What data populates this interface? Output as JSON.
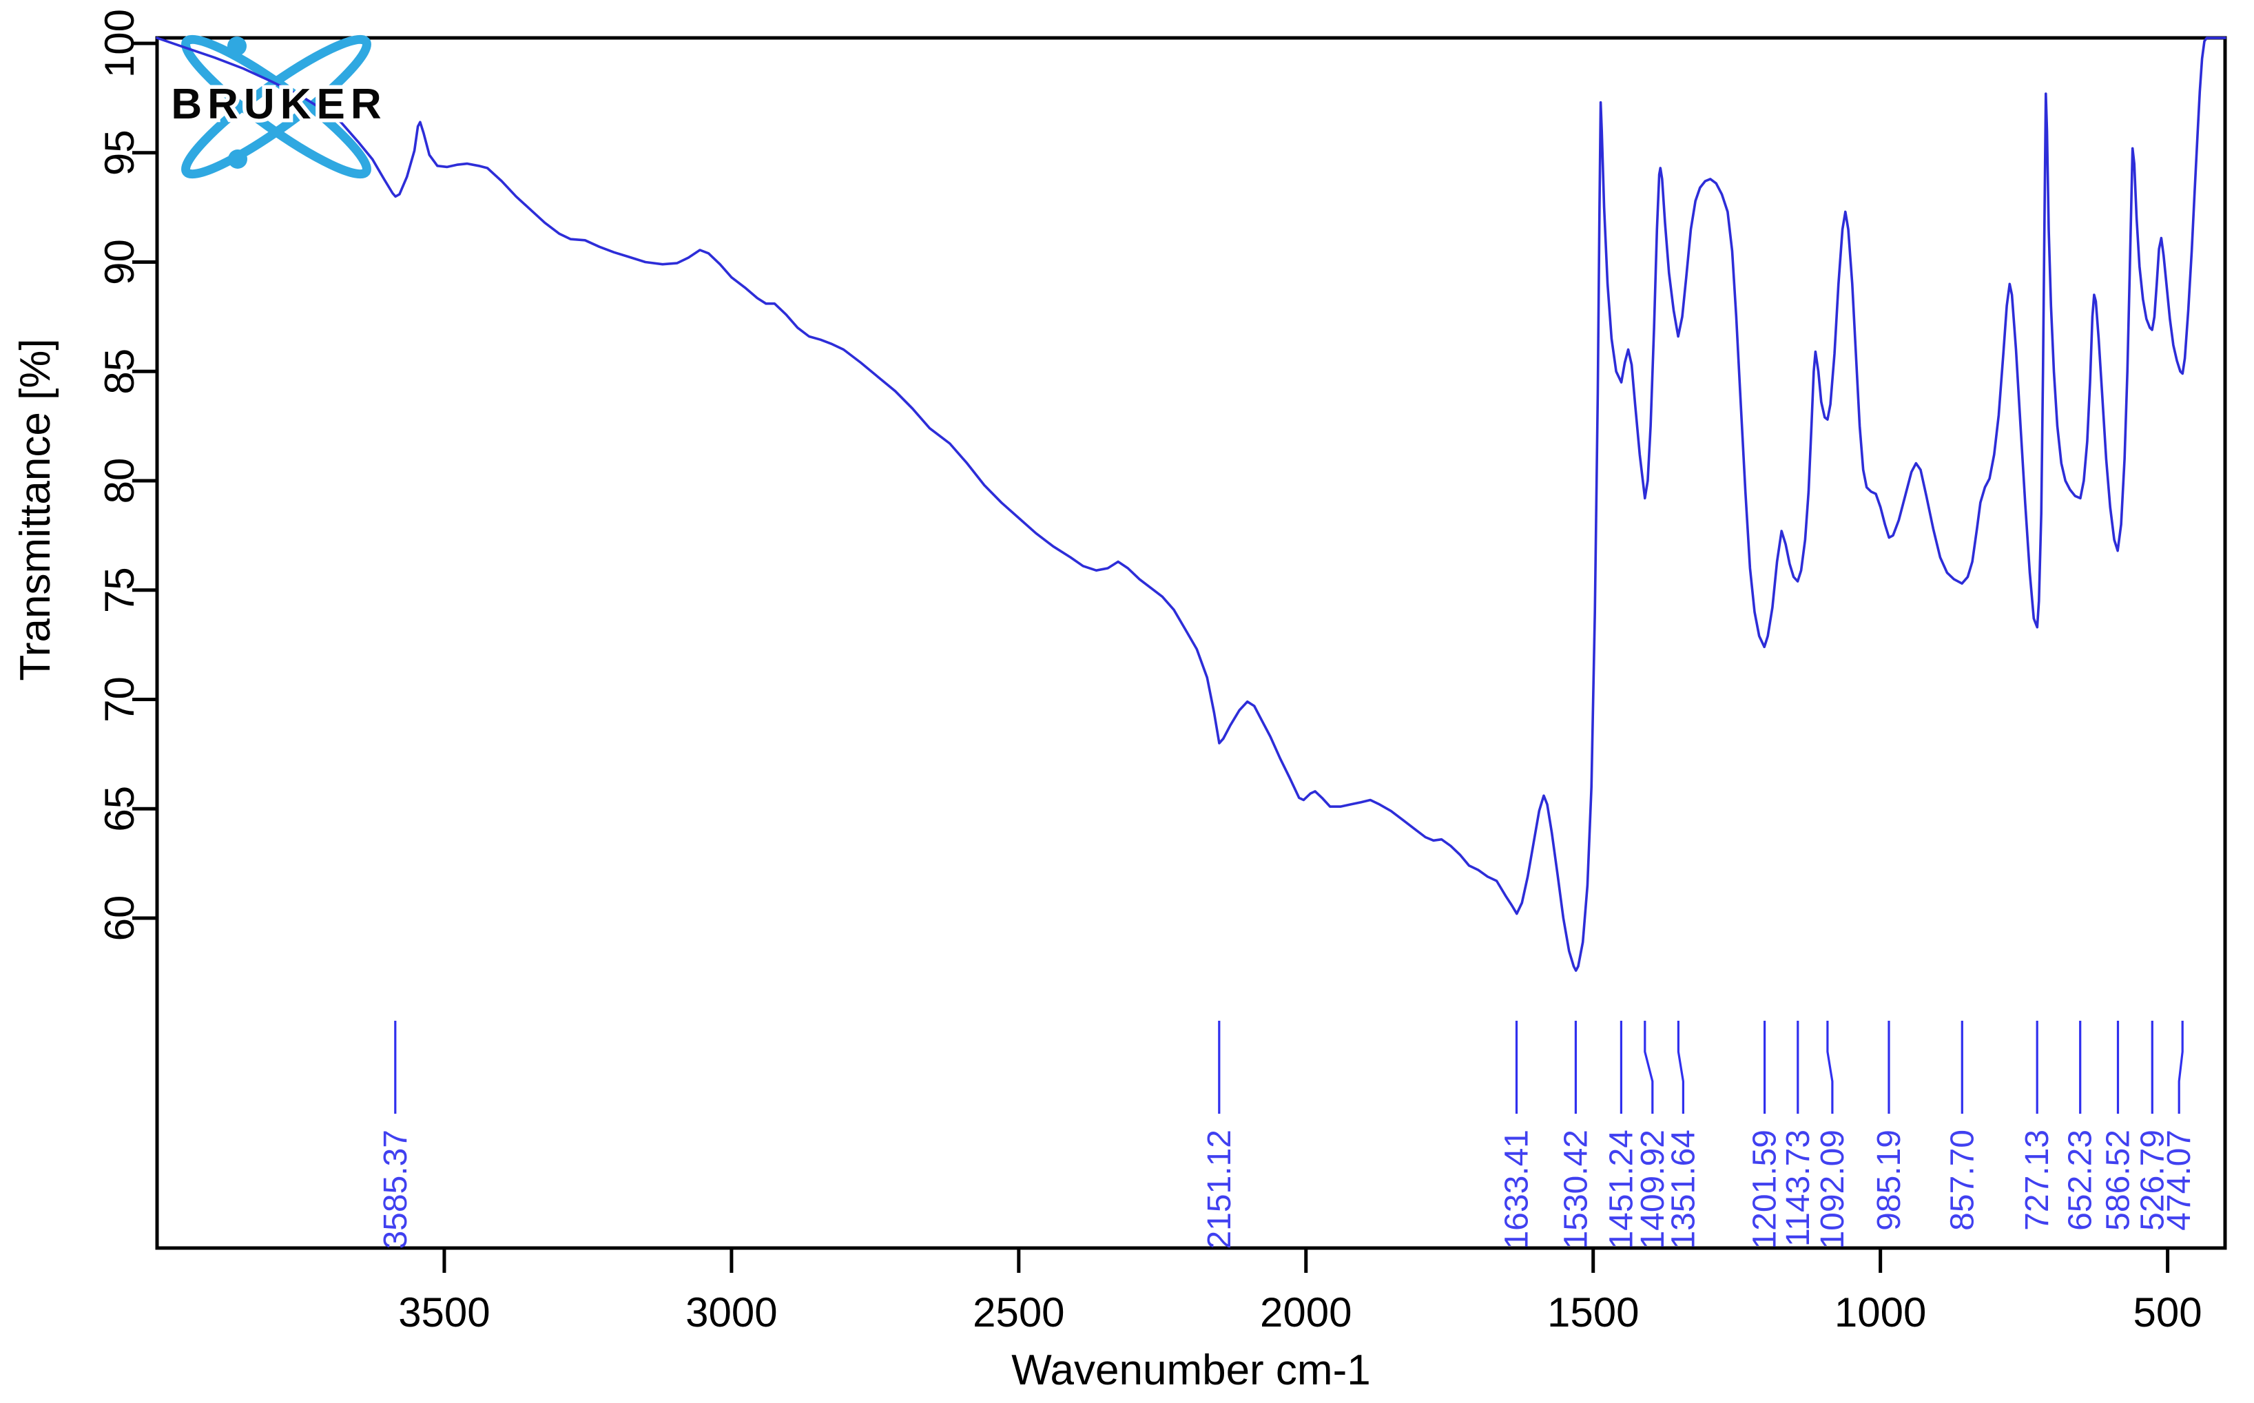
{
  "branding": {
    "logo_text": "BRUKER",
    "logo_color": "#2FA8E1"
  },
  "chart_data": {
    "type": "line",
    "title": "",
    "xlabel": "Wavenumber cm-1",
    "ylabel": "Transmittance [%]",
    "x_axis": {
      "unit": "cm-1",
      "min": 400,
      "max": 4000,
      "reversed": true,
      "tick_labels": [
        "3500",
        "3000",
        "2500",
        "2000",
        "1500",
        "1000",
        "500"
      ]
    },
    "y_axis": {
      "unit": "%",
      "labeled_min": 60,
      "labeled_max": 100,
      "tick_labels": [
        "100",
        "95",
        "90",
        "85",
        "80",
        "75",
        "70",
        "65",
        "60"
      ]
    },
    "grid": false,
    "legend": false,
    "colors": {
      "curve": "#2d2dd8",
      "peak_marker": "#3030ee",
      "peak_text": "#4040f0",
      "axis": "#000000"
    },
    "peak_labels": [
      "3585.37",
      "2151.12",
      "1633.41",
      "1530.42",
      "1451.24",
      "1409.92",
      "1351.64",
      "1201.59",
      "1143.73",
      "1092.09",
      "985.19",
      "857.70",
      "727.13",
      "652.23",
      "586.52",
      "526.79",
      "474.07"
    ],
    "series": [
      {
        "name": "FTIR transmittance spectrum",
        "points": [
          [
            4000,
            100.25
          ],
          [
            3950,
            99.8
          ],
          [
            3900,
            99.35
          ],
          [
            3850,
            98.85
          ],
          [
            3800,
            98.25
          ],
          [
            3750,
            97.6
          ],
          [
            3710,
            96.95
          ],
          [
            3680,
            96.4
          ],
          [
            3650,
            95.5
          ],
          [
            3625,
            94.7
          ],
          [
            3605,
            93.8
          ],
          [
            3590,
            93.15
          ],
          [
            3585,
            93.0
          ],
          [
            3578,
            93.1
          ],
          [
            3565,
            93.9
          ],
          [
            3552,
            95.1
          ],
          [
            3546,
            96.2
          ],
          [
            3542,
            96.4
          ],
          [
            3536,
            95.9
          ],
          [
            3526,
            94.9
          ],
          [
            3512,
            94.4
          ],
          [
            3495,
            94.35
          ],
          [
            3478,
            94.45
          ],
          [
            3460,
            94.5
          ],
          [
            3440,
            94.4
          ],
          [
            3425,
            94.3
          ],
          [
            3400,
            93.7
          ],
          [
            3375,
            93.0
          ],
          [
            3350,
            92.4
          ],
          [
            3325,
            91.8
          ],
          [
            3300,
            91.3
          ],
          [
            3280,
            91.05
          ],
          [
            3255,
            91.0
          ],
          [
            3230,
            90.7
          ],
          [
            3205,
            90.45
          ],
          [
            3180,
            90.25
          ],
          [
            3150,
            90.0
          ],
          [
            3120,
            89.9
          ],
          [
            3095,
            89.95
          ],
          [
            3075,
            90.2
          ],
          [
            3055,
            90.55
          ],
          [
            3040,
            90.4
          ],
          [
            3020,
            89.9
          ],
          [
            3000,
            89.3
          ],
          [
            2975,
            88.8
          ],
          [
            2955,
            88.35
          ],
          [
            2940,
            88.1
          ],
          [
            2925,
            88.1
          ],
          [
            2905,
            87.6
          ],
          [
            2885,
            87.0
          ],
          [
            2865,
            86.6
          ],
          [
            2845,
            86.45
          ],
          [
            2825,
            86.25
          ],
          [
            2805,
            86.0
          ],
          [
            2775,
            85.4
          ],
          [
            2745,
            84.75
          ],
          [
            2715,
            84.1
          ],
          [
            2685,
            83.3
          ],
          [
            2655,
            82.4
          ],
          [
            2620,
            81.7
          ],
          [
            2590,
            80.8
          ],
          [
            2560,
            79.8
          ],
          [
            2530,
            79.0
          ],
          [
            2500,
            78.3
          ],
          [
            2470,
            77.6
          ],
          [
            2440,
            77.0
          ],
          [
            2410,
            76.5
          ],
          [
            2388,
            76.1
          ],
          [
            2365,
            75.9
          ],
          [
            2345,
            76.0
          ],
          [
            2327,
            76.3
          ],
          [
            2310,
            76.0
          ],
          [
            2290,
            75.5
          ],
          [
            2270,
            75.1
          ],
          [
            2250,
            74.7
          ],
          [
            2230,
            74.1
          ],
          [
            2210,
            73.2
          ],
          [
            2190,
            72.3
          ],
          [
            2172,
            71.0
          ],
          [
            2160,
            69.4
          ],
          [
            2151,
            68.0
          ],
          [
            2144,
            68.2
          ],
          [
            2132,
            68.8
          ],
          [
            2116,
            69.5
          ],
          [
            2102,
            69.9
          ],
          [
            2090,
            69.7
          ],
          [
            2076,
            69.0
          ],
          [
            2062,
            68.3
          ],
          [
            2045,
            67.3
          ],
          [
            2028,
            66.4
          ],
          [
            2012,
            65.5
          ],
          [
            2004,
            65.4
          ],
          [
            1992,
            65.7
          ],
          [
            1984,
            65.8
          ],
          [
            1972,
            65.5
          ],
          [
            1958,
            65.1
          ],
          [
            1940,
            65.1
          ],
          [
            1922,
            65.2
          ],
          [
            1904,
            65.3
          ],
          [
            1888,
            65.4
          ],
          [
            1872,
            65.2
          ],
          [
            1852,
            64.9
          ],
          [
            1832,
            64.5
          ],
          [
            1812,
            64.1
          ],
          [
            1792,
            63.7
          ],
          [
            1778,
            63.55
          ],
          [
            1764,
            63.6
          ],
          [
            1748,
            63.3
          ],
          [
            1732,
            62.9
          ],
          [
            1716,
            62.4
          ],
          [
            1700,
            62.2
          ],
          [
            1684,
            61.9
          ],
          [
            1668,
            61.7
          ],
          [
            1652,
            61.0
          ],
          [
            1642,
            60.6
          ],
          [
            1633,
            60.2
          ],
          [
            1624,
            60.7
          ],
          [
            1614,
            61.9
          ],
          [
            1604,
            63.4
          ],
          [
            1594,
            64.9
          ],
          [
            1586,
            65.6
          ],
          [
            1580,
            65.2
          ],
          [
            1572,
            63.9
          ],
          [
            1562,
            62.0
          ],
          [
            1552,
            60.0
          ],
          [
            1542,
            58.5
          ],
          [
            1534,
            57.8
          ],
          [
            1530,
            57.6
          ],
          [
            1526,
            57.8
          ],
          [
            1518,
            58.9
          ],
          [
            1510,
            61.5
          ],
          [
            1503,
            66.0
          ],
          [
            1497,
            74.0
          ],
          [
            1492,
            84.0
          ],
          [
            1489,
            92.5
          ],
          [
            1487,
            97.3
          ],
          [
            1485,
            96.0
          ],
          [
            1481,
            92.5
          ],
          [
            1475,
            89.0
          ],
          [
            1468,
            86.5
          ],
          [
            1460,
            85.0
          ],
          [
            1451,
            84.5
          ],
          [
            1445,
            85.4
          ],
          [
            1439,
            86.0
          ],
          [
            1433,
            85.3
          ],
          [
            1427,
            83.5
          ],
          [
            1419,
            81.2
          ],
          [
            1410,
            79.2
          ],
          [
            1405,
            80.0
          ],
          [
            1400,
            82.5
          ],
          [
            1394,
            87.0
          ],
          [
            1389,
            91.5
          ],
          [
            1385,
            94.0
          ],
          [
            1383,
            94.3
          ],
          [
            1380,
            93.8
          ],
          [
            1375,
            91.8
          ],
          [
            1368,
            89.5
          ],
          [
            1360,
            87.8
          ],
          [
            1352,
            86.6
          ],
          [
            1345,
            87.5
          ],
          [
            1338,
            89.3
          ],
          [
            1330,
            91.5
          ],
          [
            1322,
            92.8
          ],
          [
            1314,
            93.4
          ],
          [
            1305,
            93.7
          ],
          [
            1296,
            93.8
          ],
          [
            1286,
            93.6
          ],
          [
            1276,
            93.1
          ],
          [
            1266,
            92.3
          ],
          [
            1258,
            90.5
          ],
          [
            1251,
            87.5
          ],
          [
            1243,
            83.5
          ],
          [
            1235,
            79.5
          ],
          [
            1227,
            76.0
          ],
          [
            1219,
            74.0
          ],
          [
            1211,
            72.9
          ],
          [
            1202,
            72.4
          ],
          [
            1196,
            72.9
          ],
          [
            1188,
            74.2
          ],
          [
            1180,
            76.3
          ],
          [
            1172,
            77.7
          ],
          [
            1165,
            77.1
          ],
          [
            1158,
            76.2
          ],
          [
            1151,
            75.6
          ],
          [
            1144,
            75.4
          ],
          [
            1138,
            75.9
          ],
          [
            1131,
            77.3
          ],
          [
            1125,
            79.5
          ],
          [
            1120,
            82.5
          ],
          [
            1116,
            85.0
          ],
          [
            1113,
            85.9
          ],
          [
            1108,
            85.0
          ],
          [
            1103,
            83.6
          ],
          [
            1097,
            82.9
          ],
          [
            1092,
            82.8
          ],
          [
            1087,
            83.5
          ],
          [
            1080,
            85.8
          ],
          [
            1073,
            89.0
          ],
          [
            1066,
            91.5
          ],
          [
            1061,
            92.3
          ],
          [
            1056,
            91.5
          ],
          [
            1049,
            89.0
          ],
          [
            1042,
            85.5
          ],
          [
            1036,
            82.5
          ],
          [
            1030,
            80.5
          ],
          [
            1024,
            79.7
          ],
          [
            1016,
            79.5
          ],
          [
            1008,
            79.4
          ],
          [
            1000,
            78.8
          ],
          [
            992,
            78.0
          ],
          [
            985,
            77.4
          ],
          [
            978,
            77.5
          ],
          [
            968,
            78.2
          ],
          [
            956,
            79.4
          ],
          [
            946,
            80.4
          ],
          [
            938,
            80.8
          ],
          [
            930,
            80.5
          ],
          [
            920,
            79.3
          ],
          [
            908,
            77.8
          ],
          [
            896,
            76.5
          ],
          [
            884,
            75.8
          ],
          [
            872,
            75.5
          ],
          [
            858,
            75.3
          ],
          [
            848,
            75.6
          ],
          [
            840,
            76.3
          ],
          [
            832,
            77.8
          ],
          [
            826,
            79.0
          ],
          [
            818,
            79.7
          ],
          [
            810,
            80.1
          ],
          [
            802,
            81.2
          ],
          [
            794,
            83.0
          ],
          [
            786,
            85.8
          ],
          [
            780,
            88.0
          ],
          [
            775,
            89.0
          ],
          [
            771,
            88.5
          ],
          [
            764,
            86.0
          ],
          [
            756,
            82.5
          ],
          [
            748,
            79.0
          ],
          [
            740,
            75.8
          ],
          [
            733,
            73.7
          ],
          [
            727,
            73.3
          ],
          [
            724,
            74.5
          ],
          [
            720,
            78.5
          ],
          [
            717,
            85.0
          ],
          [
            714,
            93.0
          ],
          [
            712,
            97.7
          ],
          [
            710,
            96.0
          ],
          [
            707,
            91.5
          ],
          [
            703,
            88.0
          ],
          [
            698,
            85.0
          ],
          [
            692,
            82.5
          ],
          [
            685,
            80.8
          ],
          [
            678,
            80.0
          ],
          [
            670,
            79.6
          ],
          [
            661,
            79.3
          ],
          [
            652,
            79.2
          ],
          [
            646,
            80.0
          ],
          [
            640,
            81.8
          ],
          [
            635,
            84.5
          ],
          [
            631,
            87.5
          ],
          [
            628,
            88.5
          ],
          [
            625,
            88.2
          ],
          [
            620,
            86.5
          ],
          [
            614,
            84.0
          ],
          [
            607,
            81.0
          ],
          [
            600,
            78.8
          ],
          [
            593,
            77.3
          ],
          [
            587,
            76.8
          ],
          [
            581,
            78.0
          ],
          [
            575,
            81.0
          ],
          [
            570,
            85.0
          ],
          [
            566,
            89.5
          ],
          [
            563,
            93.0
          ],
          [
            561,
            95.2
          ],
          [
            558,
            94.5
          ],
          [
            554,
            92.0
          ],
          [
            549,
            89.8
          ],
          [
            543,
            88.3
          ],
          [
            537,
            87.4
          ],
          [
            531,
            87.0
          ],
          [
            527,
            86.9
          ],
          [
            523,
            87.5
          ],
          [
            519,
            89.0
          ],
          [
            515,
            90.6
          ],
          [
            511,
            91.1
          ],
          [
            507,
            90.3
          ],
          [
            502,
            89.0
          ],
          [
            496,
            87.4
          ],
          [
            490,
            86.2
          ],
          [
            484,
            85.5
          ],
          [
            478,
            85.0
          ],
          [
            474,
            84.9
          ],
          [
            470,
            85.6
          ],
          [
            464,
            87.8
          ],
          [
            458,
            90.5
          ],
          [
            453,
            93.2
          ],
          [
            448,
            95.8
          ],
          [
            444,
            97.8
          ],
          [
            440,
            99.3
          ],
          [
            436,
            100.1
          ],
          [
            432,
            100.25
          ],
          [
            420,
            100.25
          ],
          [
            410,
            100.25
          ],
          [
            400,
            100.25
          ]
        ]
      }
    ]
  }
}
